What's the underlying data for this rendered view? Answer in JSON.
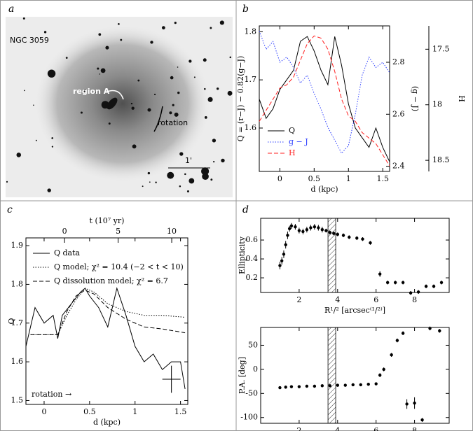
{
  "panels": [
    "a",
    "b",
    "c",
    "d"
  ],
  "image": {
    "object": "NGC 3059",
    "region": "region A",
    "rotation": "rotation",
    "scale": "1'"
  },
  "chart_data": [
    {
      "type": "line",
      "xlabel": "d (kpc)",
      "ylabel": "Q = (r−J) − 0.82(g−J)",
      "y2label": "(g − J)",
      "y3label": "H",
      "xlim": [
        -0.3,
        1.6
      ],
      "xticks": [
        0,
        0.5,
        1,
        1.5
      ],
      "ylim": [
        1.51,
        1.812
      ],
      "yticks": [
        1.6,
        1.7,
        1.8
      ],
      "y2lim": [
        2.38,
        2.94
      ],
      "y2ticks": [
        2.4,
        2.6,
        2.8
      ],
      "y3lim": [
        18.6,
        17.29
      ],
      "y3ticks": [
        17.5,
        18,
        18.5
      ],
      "x": [
        -0.3,
        -0.2,
        -0.1,
        0,
        0.1,
        0.2,
        0.3,
        0.4,
        0.5,
        0.6,
        0.7,
        0.8,
        0.9,
        1.0,
        1.1,
        1.2,
        1.3,
        1.4,
        1.5,
        1.6
      ],
      "series": [
        {
          "name": "Q",
          "color": "#000000",
          "style": "solid",
          "axis": "y",
          "values": [
            1.66,
            1.62,
            1.64,
            1.68,
            1.7,
            1.72,
            1.78,
            1.79,
            1.76,
            1.72,
            1.69,
            1.79,
            1.73,
            1.65,
            1.6,
            1.58,
            1.56,
            1.6,
            1.56,
            1.53
          ]
        },
        {
          "name": "g − J",
          "color": "#2a3cff",
          "style": "dotted",
          "axis": "y2",
          "values": [
            2.92,
            2.85,
            2.88,
            2.8,
            2.82,
            2.78,
            2.72,
            2.75,
            2.68,
            2.62,
            2.55,
            2.5,
            2.45,
            2.48,
            2.6,
            2.75,
            2.82,
            2.78,
            2.8,
            2.76
          ]
        },
        {
          "name": "H",
          "color": "#ff2020",
          "style": "dashed",
          "axis": "y3",
          "values": [
            18.15,
            18.05,
            17.95,
            17.85,
            17.82,
            17.75,
            17.6,
            17.45,
            17.38,
            17.4,
            17.5,
            17.7,
            17.95,
            18.1,
            18.15,
            18.25,
            18.3,
            18.35,
            18.45,
            18.55
          ]
        }
      ]
    },
    {
      "type": "line",
      "xlabel": "d (kpc)",
      "ylabel": "Q",
      "x2label": "t (10⁷ yr)",
      "xlim": [
        -0.2,
        1.58
      ],
      "xticks": [
        0,
        0.5,
        1,
        1.5
      ],
      "x2lim": [
        -3.6,
        11.5
      ],
      "x2ticks": [
        0,
        5,
        10
      ],
      "ylim": [
        1.49,
        1.92
      ],
      "yticks": [
        1.5,
        1.6,
        1.7,
        1.8,
        1.9
      ],
      "series": [
        {
          "name": "Q data",
          "color": "#000000",
          "style": "solid",
          "x": [
            -0.2,
            -0.1,
            0,
            0.1,
            0.15,
            0.2,
            0.3,
            0.4,
            0.45,
            0.5,
            0.6,
            0.7,
            0.8,
            0.9,
            1.0,
            1.1,
            1.2,
            1.3,
            1.4,
            1.5,
            1.55
          ],
          "values": [
            1.64,
            1.74,
            1.7,
            1.72,
            1.66,
            1.72,
            1.75,
            1.78,
            1.79,
            1.77,
            1.74,
            1.69,
            1.79,
            1.72,
            1.64,
            1.6,
            1.62,
            1.58,
            1.6,
            1.6,
            1.53
          ]
        },
        {
          "name": "Q model; χ² = 10.4  (−2 < t < 10)",
          "color": "#000000",
          "style": "dotted",
          "x": [
            -0.15,
            0,
            0.15,
            0.25,
            0.35,
            0.45,
            0.55,
            0.7,
            0.9,
            1.1,
            1.3,
            1.55
          ],
          "values": [
            1.67,
            1.67,
            1.67,
            1.72,
            1.76,
            1.79,
            1.78,
            1.75,
            1.73,
            1.72,
            1.72,
            1.715
          ]
        },
        {
          "name": "Q dissolution model; χ² = 6.7",
          "color": "#000000",
          "style": "dashed",
          "x": [
            -0.15,
            0,
            0.15,
            0.25,
            0.35,
            0.45,
            0.55,
            0.7,
            0.9,
            1.1,
            1.3,
            1.55
          ],
          "values": [
            1.67,
            1.67,
            1.67,
            1.73,
            1.77,
            1.785,
            1.775,
            1.74,
            1.71,
            1.69,
            1.685,
            1.675
          ]
        }
      ],
      "annotation": "rotation →",
      "error_bar": {
        "x": 1.4,
        "y": 1.555,
        "xerr": 0.1,
        "yerr": 0.035
      }
    },
    {
      "type": "scatter",
      "ylabel": "Ellipticity",
      "xlabel": "R¹/² [arcsec⁽¹/²⁾]",
      "xlim": [
        0,
        9.8
      ],
      "xticks": [
        2,
        4,
        6,
        8
      ],
      "ylim": [
        0.045,
        0.83
      ],
      "yticks": [
        0.2,
        0.4,
        0.6
      ],
      "band": [
        3.5,
        3.9
      ],
      "x": [
        1.0,
        1.1,
        1.2,
        1.3,
        1.4,
        1.5,
        1.6,
        1.8,
        2.0,
        2.2,
        2.4,
        2.6,
        2.8,
        3.0,
        3.2,
        3.4,
        3.6,
        3.8,
        4.0,
        4.3,
        4.6,
        5.0,
        5.3,
        5.7,
        6.2,
        6.6,
        7.0,
        7.4,
        7.8,
        8.2,
        8.6,
        9.0,
        9.4
      ],
      "values": [
        0.33,
        0.38,
        0.45,
        0.55,
        0.65,
        0.72,
        0.75,
        0.74,
        0.7,
        0.69,
        0.71,
        0.73,
        0.74,
        0.73,
        0.71,
        0.7,
        0.68,
        0.67,
        0.66,
        0.65,
        0.63,
        0.62,
        0.61,
        0.57,
        0.24,
        0.15,
        0.15,
        0.15,
        0.04,
        0.05,
        0.11,
        0.11,
        0.15
      ],
      "errors": [
        0.04,
        0.04,
        0.04,
        0.04,
        0.04,
        0.03,
        0.03,
        0.03,
        0.03,
        0.03,
        0.03,
        0.03,
        0.03,
        0.03,
        0.03,
        0.02,
        0.02,
        0.02,
        0.02,
        0.02,
        0.02,
        0.02,
        0.02,
        0.02,
        0.03,
        0.02,
        0.02,
        0.02,
        0.02,
        0.02,
        0.02,
        0.02,
        0.02
      ]
    },
    {
      "type": "scatter",
      "ylabel": "P.A. [deg]",
      "xlabel": "R¹/² [arcsec⁽¹/²⁾]",
      "xlim": [
        0,
        9.8
      ],
      "xticks": [
        2,
        4,
        6,
        8
      ],
      "ylim": [
        -112,
        87
      ],
      "yticks": [
        -100,
        -50,
        0,
        50
      ],
      "band": [
        3.5,
        3.9
      ],
      "x": [
        1.0,
        1.3,
        1.6,
        2.0,
        2.4,
        2.8,
        3.2,
        3.6,
        4.0,
        4.4,
        4.8,
        5.2,
        5.6,
        6.0,
        6.2,
        6.4,
        6.8,
        7.1,
        7.4,
        7.6,
        8.0,
        8.4,
        8.8,
        9.3
      ],
      "values": [
        -38,
        -37,
        -36,
        -36,
        -35,
        -35,
        -34,
        -34,
        -33,
        -33,
        -32,
        -32,
        -31,
        -30,
        -12,
        0,
        30,
        60,
        75,
        -72,
        -70,
        -105,
        85,
        80
      ],
      "errors": [
        3,
        3,
        3,
        3,
        3,
        3,
        3,
        3,
        3,
        3,
        3,
        3,
        3,
        3,
        4,
        4,
        4,
        4,
        4,
        10,
        12,
        4,
        4,
        4
      ]
    }
  ]
}
